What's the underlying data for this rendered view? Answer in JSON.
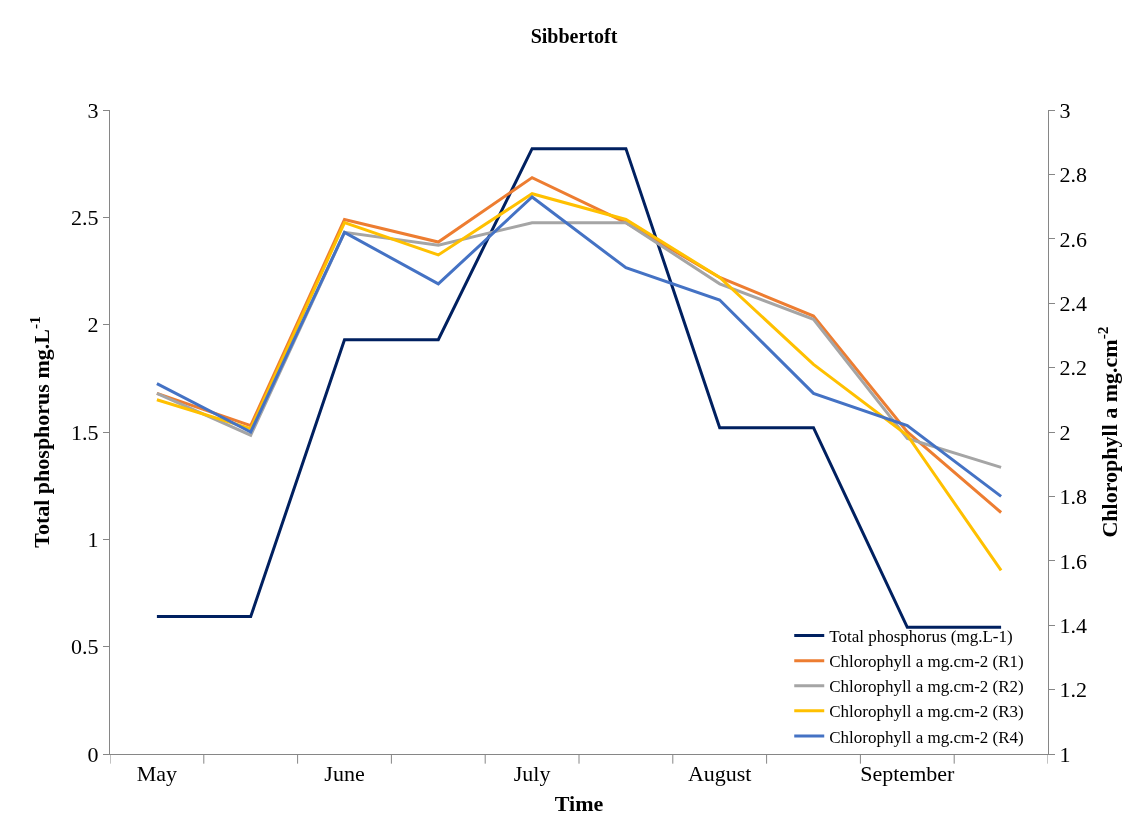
{
  "chart_data": {
    "type": "line",
    "title": "Sibbertoft",
    "xlabel": "Time",
    "ylabel": "Total phosphorus mg.L$^{-1}$",
    "y2label": "Chlorophyll a mg.cm$^{-2}$",
    "categories": [
      "May",
      null,
      "June",
      null,
      "July",
      null,
      "August",
      null,
      "September",
      null
    ],
    "series": [
      {
        "name": "Total phosphorus (mg.L-1)",
        "color": "#002060",
        "values": [
          0.64,
          0.64,
          1.93,
          1.93,
          2.82,
          2.82,
          1.52,
          1.52,
          0.59,
          0.59
        ]
      },
      {
        "name": "Chlorophyll a mg.cm-2 (R1)",
        "color": "#ed7d31",
        "axis": "y2",
        "values": [
          2.12,
          2.02,
          2.66,
          2.59,
          2.79,
          2.65,
          2.48,
          2.36,
          2.0,
          1.75
        ]
      },
      {
        "name": "Chlorophyll a mg.cm-2 (R2)",
        "color": "#a5a5a5",
        "axis": "y2",
        "values": [
          2.12,
          1.99,
          2.62,
          2.58,
          2.65,
          2.65,
          2.46,
          2.35,
          1.98,
          1.89
        ]
      },
      {
        "name": "Chlorophyll a mg.cm-2 (R3)",
        "color": "#ffc000",
        "axis": "y2",
        "values": [
          2.1,
          2.01,
          2.65,
          2.55,
          2.74,
          2.66,
          2.48,
          2.21,
          1.99,
          1.57
        ]
      },
      {
        "name": "Chlorophyll a mg.cm-2 (R4)",
        "color": "#4472c4",
        "axis": "y2",
        "values": [
          2.15,
          2.0,
          2.62,
          2.46,
          2.73,
          2.51,
          2.41,
          2.12,
          2.02,
          1.8
        ]
      }
    ],
    "ylim": [
      0,
      3
    ],
    "yticks": [
      0,
      {
        "value": 0.5,
        "label": "0.5"
      },
      1,
      {
        "value": 1.5,
        "label": "1.5"
      },
      2,
      {
        "value": 2.5,
        "label": "2.5"
      },
      3
    ],
    "y2lim": [
      1,
      3
    ],
    "y2ticks": [
      1,
      {
        "value": 1.2,
        "label": "1.2"
      },
      {
        "value": 1.4,
        "label": "1.4"
      },
      {
        "value": 1.6,
        "label": "1.6"
      },
      {
        "value": 1.8,
        "label": "1.8"
      },
      2,
      {
        "value": 2.2,
        "label": "2.2"
      },
      {
        "value": 2.4,
        "label": "2.4"
      },
      {
        "value": 2.6,
        "label": "2.6"
      },
      {
        "value": 2.8,
        "label": "2.8"
      },
      3
    ],
    "legend": "bottom right",
    "marker": "none",
    "line_style": "solid"
  }
}
